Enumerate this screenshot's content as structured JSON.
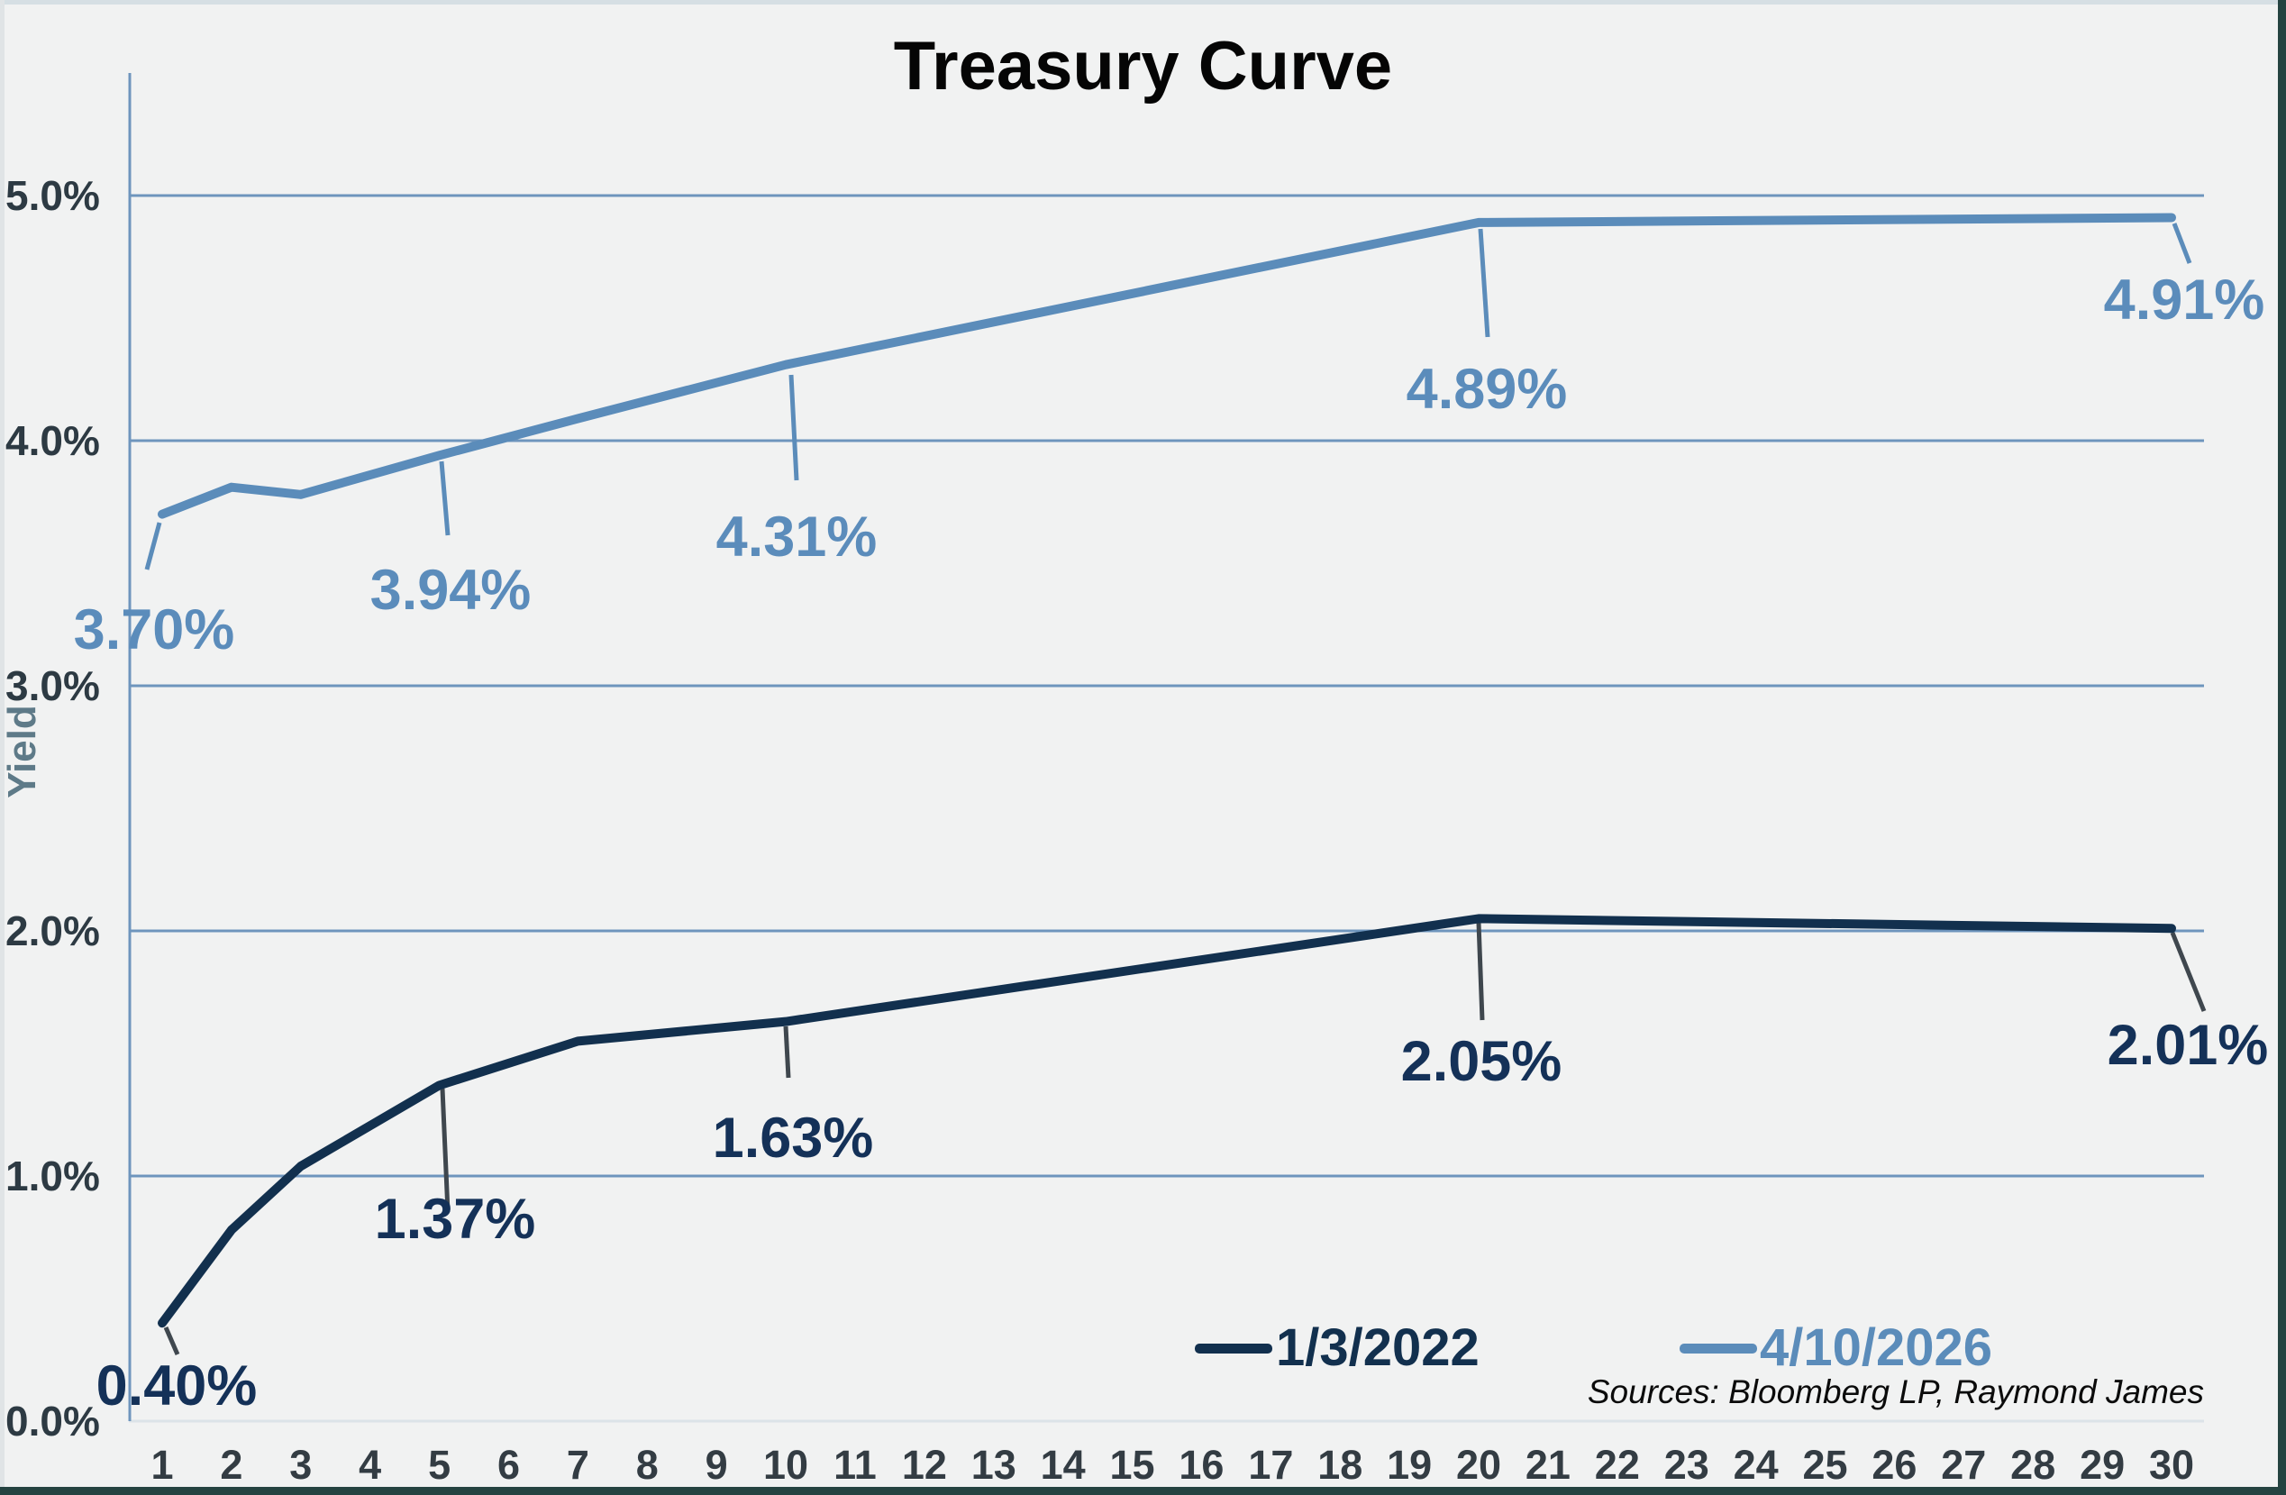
{
  "window": {
    "background": "#f1f2f2",
    "edge_light": "#d6dfe4",
    "edge_dark": "#254341"
  },
  "chart_data": {
    "type": "line",
    "title": "Treasury Curve",
    "xlabel": "",
    "ylabel": "Yield",
    "x_categories": [
      "1",
      "2",
      "3",
      "4",
      "5",
      "6",
      "7",
      "8",
      "9",
      "10",
      "11",
      "12",
      "13",
      "14",
      "15",
      "16",
      "17",
      "18",
      "19",
      "20",
      "21",
      "22",
      "23",
      "24",
      "25",
      "26",
      "27",
      "28",
      "29",
      "30"
    ],
    "ylim": [
      0,
      5.5
    ],
    "grid": true,
    "gridline_color": "#6e95bd",
    "baseline_color": "#dce3e8",
    "y_ticks": [
      {
        "v": 0,
        "label": "0.0%"
      },
      {
        "v": 1,
        "label": "1.0%"
      },
      {
        "v": 2,
        "label": "2.0%"
      },
      {
        "v": 3,
        "label": "3.0%"
      },
      {
        "v": 4,
        "label": "4.0%"
      },
      {
        "v": 5,
        "label": "5.0%"
      }
    ],
    "series": [
      {
        "name": "1/3/2022",
        "color": "#12304e",
        "label_color": "#143158",
        "leader_color": "#3f474e",
        "maturities": [
          1,
          2,
          3,
          5,
          7,
          10,
          20,
          30
        ],
        "values": [
          0.4,
          0.78,
          1.04,
          1.37,
          1.55,
          1.63,
          2.05,
          2.01
        ],
        "data_labels": {
          "1": "0.40%",
          "5": "1.37%",
          "10": "1.63%",
          "20": "2.05%",
          "30": "2.01%"
        }
      },
      {
        "name": "4/10/2026",
        "color": "#5b8cba",
        "label_color": "#5b8cbb",
        "leader_color": "#5b8cba",
        "maturities": [
          1,
          2,
          3,
          5,
          7,
          10,
          20,
          30
        ],
        "values": [
          3.7,
          3.81,
          3.78,
          3.94,
          4.09,
          4.31,
          4.89,
          4.91
        ],
        "data_labels": {
          "1": "3.70%",
          "5": "3.94%",
          "10": "4.31%",
          "20": "4.89%",
          "30": "4.91%"
        }
      }
    ],
    "legend": [
      {
        "label": "1/3/2022",
        "color": "#12304e"
      },
      {
        "label": "4/10/2026",
        "color": "#5b8cba"
      }
    ],
    "legend_position": "bottom-right-inside",
    "source_note": "Sources: Bloomberg LP, Raymond James"
  }
}
